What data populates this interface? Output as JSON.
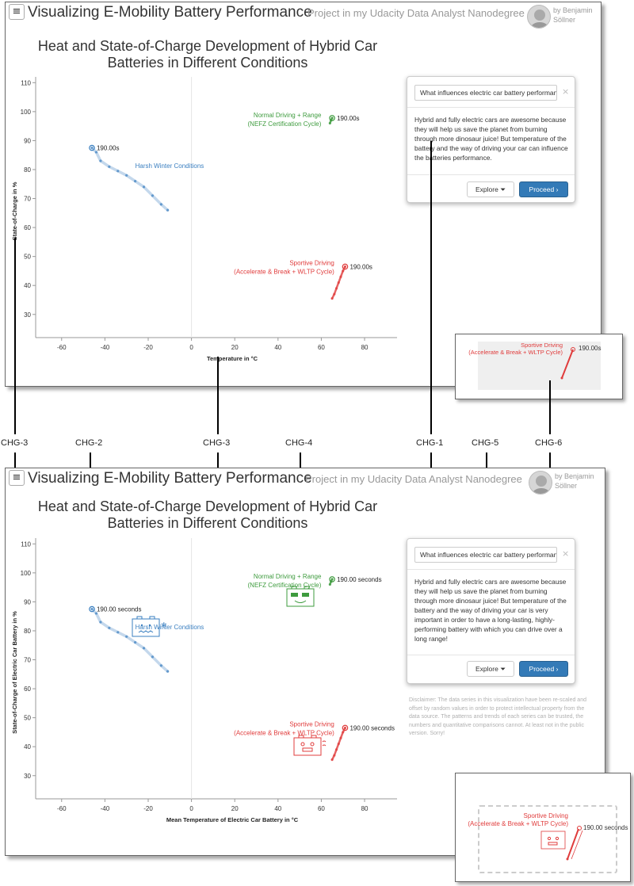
{
  "before": {
    "header": {
      "menu_glyph": "≡",
      "title": "Visualizing E-Mobility Battery Performance",
      "subtitle": "Project in my Udacity Data Analyst Nanodegree",
      "byline_1": "by Benjamin",
      "byline_2": "Söllner"
    },
    "chart_title_1": "Heat and State-of-Charge Development of Hybrid Car",
    "chart_title_2": "Batteries in Different Conditions",
    "xlabel": "Temperature in °C",
    "ylabel": "State-of-Charge in %",
    "label_winter": "Harsh Winter Conditions",
    "label_normal_1": "Normal Driving + Range",
    "label_normal_2": "(NEFZ Certification Cycle)",
    "label_sport_1": "Sportive Driving",
    "label_sport_2": "(Accelerate & Break + WLTP Cycle)",
    "time_label": "190.00s",
    "card": {
      "question": "What influences electric car battery performance?",
      "close": "×",
      "text": "Hybrid and fully electric cars are awesome because they will help us save the planet from burning through more dinosaur juice! But temperature of the battery and the way of driving your car can influence the batteries performance.",
      "explore": "Explore",
      "proceed": "Proceed"
    },
    "callout": {
      "label_1": "Sportive Driving",
      "label_2": "(Accelerate & Break + WLTP Cycle)",
      "time_label": "190.00s"
    }
  },
  "after": {
    "header": {
      "menu_glyph": "≡",
      "title": "Visualizing E-Mobility Battery Performance",
      "subtitle": "Project in my Udacity Data Analyst Nanodegree",
      "byline_1": "by Benjamin",
      "byline_2": "Söllner"
    },
    "chart_title_1": "Heat and State-of-Charge Development of Hybrid Car",
    "chart_title_2": "Batteries in Different Conditions",
    "xlabel": "Mean Temperature of Electric Car Battery in °C",
    "ylabel": "State-of-Charge of Electric Car Battery in %",
    "label_winter": "Harsh Winter Conditions",
    "label_normal_1": "Normal Driving + Range",
    "label_normal_2": "(NEFZ Certification Cycle)",
    "label_sport_1": "Sportive Driving",
    "label_sport_2": "(Accelerate & Break + WLTP Cycle)",
    "time_label": "190.00 seconds",
    "card": {
      "question": "What influences electric car battery performance?",
      "close": "×",
      "text": "Hybrid and fully electric cars are awesome because they will help us save the planet from burning through more dinosaur juice! But temperature of the battery and the way of driving your car is very important in order to have a long-lasting, highly-performing battery with which you can drive over a long range!",
      "explore": "Explore",
      "proceed": "Proceed"
    },
    "disclaimer": "Disclaimer: The data series in this visualization have been re-scaled and offset by random values in order to protect intellectual property from the data source. The patterns and trends of each series can be trusted, the numbers and quantitative comparisons cannot. At least not in the public version. Sorry!",
    "callout": {
      "label_1": "Sportive Driving",
      "label_2": "(Accelerate & Break + WLTP Cycle)",
      "time_label": "190.00 seconds"
    }
  },
  "change_labels": [
    "CHG-3",
    "CHG-2",
    "CHG-3",
    "CHG-4",
    "CHG-1",
    "CHG-5",
    "CHG-6"
  ],
  "colors": {
    "winter": "#3a7fc0",
    "normal": "#3e9b3e",
    "sport": "#e03c3c",
    "proceed": "#337ab7"
  },
  "chart_data": {
    "type": "scatter",
    "x_ticks": [
      -60,
      -40,
      -20,
      0,
      20,
      40,
      60,
      80
    ],
    "y_ticks": [
      30,
      40,
      50,
      60,
      70,
      80,
      90,
      100,
      110
    ],
    "xlim": [
      -72,
      95
    ],
    "ylim": [
      22,
      112
    ],
    "series": [
      {
        "name": "Harsh Winter Conditions",
        "x": [
          -46,
          -44,
          -42,
          -38,
          -34,
          -30,
          -26,
          -22,
          -18,
          -14,
          -11
        ],
        "y": [
          87.5,
          86,
          83,
          81,
          79.5,
          78,
          76,
          74,
          71,
          68,
          66
        ]
      },
      {
        "name": "Normal Driving + Range (NEFZ Certification Cycle)",
        "x": [
          64,
          64.5,
          65
        ],
        "y": [
          96,
          97,
          97.8
        ]
      },
      {
        "name": "Sportive Driving (Accelerate & Break + WLTP Cycle)",
        "x": [
          65,
          66,
          67,
          68,
          69,
          70,
          71
        ],
        "y": [
          35.5,
          37,
          39,
          41,
          43,
          45,
          46.5
        ]
      }
    ]
  }
}
